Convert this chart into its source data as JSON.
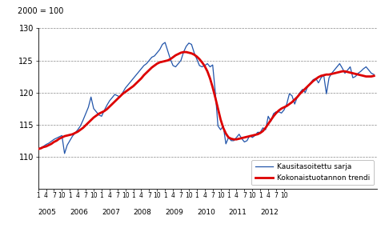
{
  "ylabel": "2000 = 100",
  "ylim": [
    105,
    130
  ],
  "yticks": [
    110,
    115,
    120,
    125,
    130
  ],
  "ytick_labels": [
    "110",
    "115",
    "120",
    "125",
    "130"
  ],
  "yline_ticks": [
    105,
    110,
    115,
    120,
    125,
    130
  ],
  "background_color": "#ffffff",
  "trend_color": "#dd0000",
  "seasonal_color": "#2255aa",
  "trend_label": "Kokonaistuotannon trendi",
  "seasonal_label": "Kausitasoitettu sarja",
  "trend_linewidth": 2.0,
  "seasonal_linewidth": 0.9,
  "trend": [
    111.2,
    111.3,
    111.5,
    111.6,
    111.8,
    112.0,
    112.3,
    112.5,
    112.8,
    113.0,
    113.2,
    113.3,
    113.4,
    113.5,
    113.7,
    113.9,
    114.2,
    114.5,
    114.9,
    115.3,
    115.7,
    116.1,
    116.4,
    116.7,
    116.9,
    117.1,
    117.4,
    117.8,
    118.2,
    118.6,
    119.0,
    119.4,
    119.8,
    120.1,
    120.4,
    120.7,
    121.0,
    121.4,
    121.8,
    122.2,
    122.7,
    123.1,
    123.5,
    123.9,
    124.2,
    124.5,
    124.7,
    124.8,
    124.9,
    125.0,
    125.2,
    125.5,
    125.8,
    126.0,
    126.2,
    126.3,
    126.3,
    126.2,
    126.1,
    125.9,
    125.6,
    125.2,
    124.7,
    124.1,
    123.3,
    122.2,
    120.8,
    119.2,
    117.5,
    115.8,
    114.5,
    113.6,
    113.0,
    112.8,
    112.7,
    112.7,
    112.8,
    112.9,
    113.0,
    113.1,
    113.2,
    113.3,
    113.4,
    113.5,
    113.7,
    114.0,
    114.5,
    115.1,
    115.7,
    116.3,
    116.8,
    117.2,
    117.5,
    117.7,
    117.9,
    118.2,
    118.5,
    118.9,
    119.3,
    119.8,
    120.2,
    120.6,
    121.0,
    121.4,
    121.8,
    122.1,
    122.4,
    122.6,
    122.7,
    122.8,
    122.8,
    122.9,
    123.0,
    123.1,
    123.2,
    123.3,
    123.3,
    123.2,
    123.1,
    123.0,
    122.9,
    122.8,
    122.7,
    122.6,
    122.5,
    122.5,
    122.5,
    122.6
  ],
  "seasonal": [
    111.2,
    111.4,
    111.6,
    111.9,
    112.1,
    112.4,
    112.7,
    112.9,
    113.1,
    113.3,
    110.5,
    111.8,
    112.5,
    113.2,
    113.7,
    114.2,
    114.8,
    115.7,
    116.7,
    117.7,
    119.3,
    117.5,
    117.0,
    116.5,
    116.3,
    117.2,
    118.0,
    118.7,
    119.2,
    119.7,
    119.5,
    119.3,
    120.0,
    120.7,
    121.2,
    121.7,
    122.2,
    122.7,
    123.2,
    123.7,
    124.2,
    124.5,
    125.0,
    125.5,
    125.7,
    126.2,
    126.7,
    127.5,
    127.8,
    126.5,
    125.2,
    124.2,
    124.0,
    124.5,
    125.0,
    126.3,
    127.2,
    127.7,
    127.5,
    126.2,
    125.2,
    124.2,
    124.0,
    124.2,
    124.5,
    124.0,
    124.3,
    120.0,
    114.8,
    114.2,
    114.8,
    112.0,
    113.0,
    112.5,
    112.5,
    113.0,
    113.5,
    112.8,
    112.3,
    112.5,
    113.3,
    113.0,
    113.3,
    113.8,
    113.8,
    114.5,
    114.2,
    116.3,
    115.5,
    116.7,
    117.0,
    117.0,
    116.8,
    117.3,
    118.2,
    119.8,
    119.5,
    118.2,
    119.3,
    120.0,
    120.5,
    120.0,
    121.0,
    121.5,
    122.0,
    122.2,
    121.5,
    122.3,
    122.7,
    119.8,
    122.3,
    123.0,
    123.5,
    124.0,
    124.5,
    123.8,
    123.0,
    123.5,
    124.0,
    122.3,
    122.5,
    123.0,
    123.3,
    123.7,
    124.0,
    123.5,
    123.0,
    122.8
  ]
}
